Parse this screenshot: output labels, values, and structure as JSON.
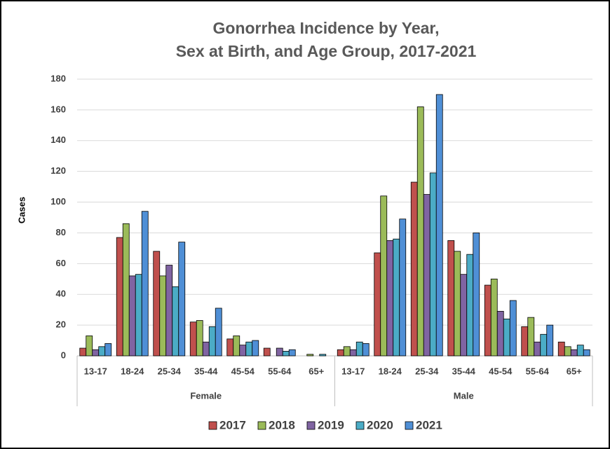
{
  "chart_data": {
    "type": "bar",
    "title": [
      "Gonorrhea Incidence by Year,",
      "Sex at Birth, and Age Group, 2017-2021"
    ],
    "y_label": "Cases",
    "groups": [
      "Female",
      "Male"
    ],
    "categories": [
      "13-17",
      "18-24",
      "25-34",
      "35-44",
      "45-54",
      "55-64",
      "65+",
      "13-17",
      "18-24",
      "25-34",
      "35-44",
      "45-54",
      "55-64",
      "65+"
    ],
    "series": [
      {
        "name": "2017",
        "color": "#c0504d",
        "values": [
          5,
          77,
          68,
          22,
          11,
          5,
          0,
          4,
          67,
          113,
          75,
          46,
          19,
          9
        ]
      },
      {
        "name": "2018",
        "color": "#9bbb59",
        "values": [
          13,
          86,
          52,
          23,
          13,
          0,
          1,
          6,
          104,
          162,
          68,
          50,
          25,
          6
        ]
      },
      {
        "name": "2019",
        "color": "#8064a2",
        "values": [
          4,
          52,
          59,
          9,
          7,
          5,
          0,
          4,
          75,
          105,
          53,
          29,
          9,
          4
        ]
      },
      {
        "name": "2020",
        "color": "#4bacc6",
        "values": [
          6,
          53,
          45,
          19,
          9,
          3,
          1,
          9,
          76,
          119,
          66,
          24,
          14,
          7
        ]
      },
      {
        "name": "2021",
        "color": "#4f8fd6",
        "values": [
          8,
          94,
          74,
          31,
          10,
          4,
          0,
          8,
          89,
          170,
          80,
          36,
          20,
          4
        ]
      }
    ],
    "ylim": [
      0,
      180
    ],
    "yticks": [
      0,
      20,
      40,
      60,
      80,
      100,
      120,
      140,
      160,
      180
    ],
    "grid": true,
    "legend": "bottom"
  }
}
